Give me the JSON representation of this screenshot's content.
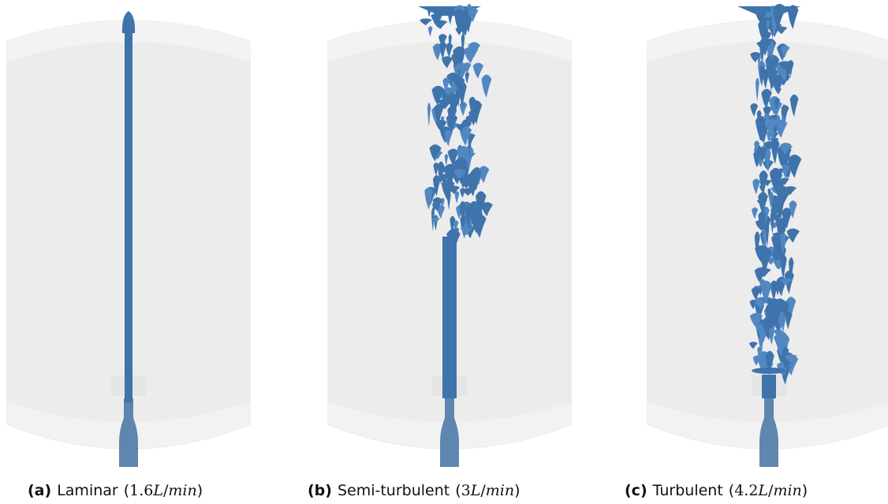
{
  "panels": [
    {
      "label": "(a)",
      "name": "Laminar",
      "rate": [
        "(",
        "1.6",
        "L",
        "/",
        "min",
        ")"
      ]
    },
    {
      "label": "(b)",
      "name": "Semi-turbulent",
      "rate": [
        "(",
        "3",
        "L",
        "/",
        "min",
        ")"
      ]
    },
    {
      "label": "(c)",
      "name": "Turbulent",
      "rate": [
        "(",
        "4.2",
        "L",
        "/",
        "min",
        ")"
      ]
    }
  ]
}
